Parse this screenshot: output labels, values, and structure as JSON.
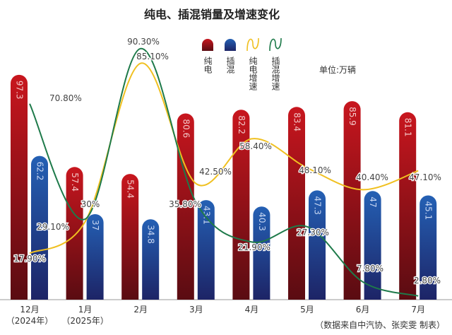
{
  "chart_data": {
    "type": "bar",
    "title": "纯电、插混销量及增速变化",
    "unit_note": "单位:万辆",
    "source_note": "（数据来自中汽协、张奕雯  制表）",
    "categories": [
      "12月",
      "1月",
      "2月",
      "3月",
      "4月",
      "5月",
      "6月",
      "7月"
    ],
    "category_sublabels": [
      "（2024年）",
      "（2025年）",
      "",
      "",
      "",
      "",
      "",
      ""
    ],
    "bar_series": [
      {
        "name": "纯电",
        "color": "#b8141c",
        "values": [
          97.3,
          57.4,
          54.4,
          80.6,
          82.2,
          83.4,
          85.9,
          81.1
        ],
        "labels": [
          "97.3",
          "57.4",
          "54.4",
          "80.6",
          "82.2",
          "83.4",
          "85.9",
          "81.1"
        ]
      },
      {
        "name": "插混",
        "color": "#1f56a8",
        "values": [
          62.2,
          37,
          34.8,
          43.1,
          40.3,
          47.3,
          47,
          45.1
        ],
        "labels": [
          "62.2",
          "37",
          "34.8",
          "43.1",
          "40.3",
          "47.3",
          "47",
          "45.1"
        ]
      }
    ],
    "line_series": [
      {
        "name": "纯电增速",
        "color": "#f0c020",
        "values": [
          17.9,
          29.1,
          85.1,
          42.5,
          58.4,
          48.1,
          40.4,
          47.1
        ],
        "labels": [
          "17.90%",
          "29.10%",
          "85.10%",
          "42.50%",
          "58.40%",
          "48.10%",
          "40.40%",
          "47.10%"
        ]
      },
      {
        "name": "插混增速",
        "color": "#1e7a4a",
        "values": [
          70.8,
          30,
          90.3,
          35.8,
          21.9,
          27.3,
          7.8,
          2.8
        ],
        "labels": [
          "70.80%",
          "30%",
          "90.30%",
          "35.80%",
          "21.90%",
          "27.30%",
          "7.80%",
          "2.80%"
        ]
      }
    ],
    "legend_position": "top",
    "grid": false
  }
}
